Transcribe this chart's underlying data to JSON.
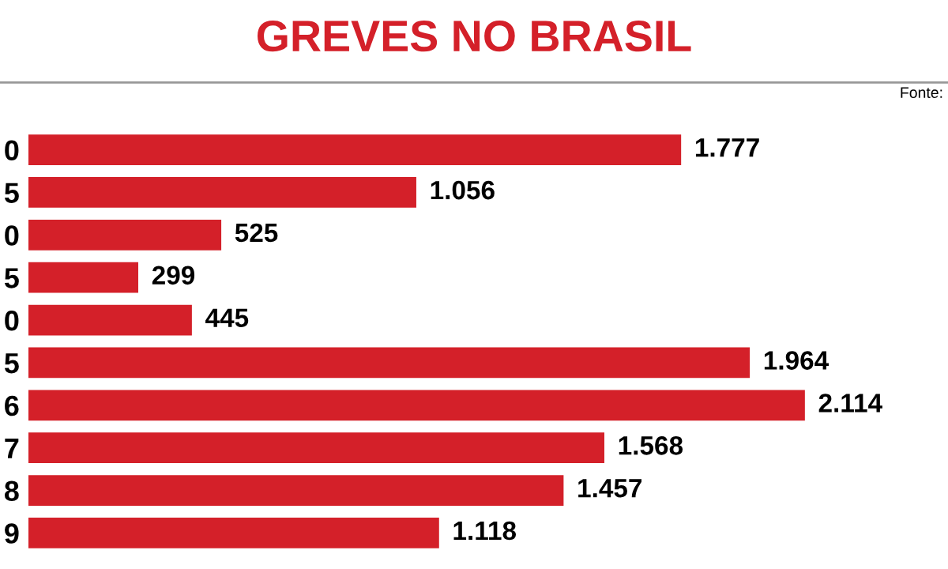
{
  "chart_data": {
    "type": "bar",
    "orientation": "horizontal",
    "title": "GREVES NO BRASIL",
    "annotations": [
      "Fonte:"
    ],
    "categories": [
      "0",
      "5",
      "0",
      "5",
      "0",
      "5",
      "6",
      "7",
      "8",
      "9"
    ],
    "values": [
      1777,
      1056,
      525,
      299,
      445,
      1964,
      2114,
      1568,
      1457,
      1118
    ],
    "value_labels": [
      "1.777",
      "1.056",
      "525",
      "299",
      "445",
      "1.964",
      "2.114",
      "1.568",
      "1.457",
      "1.118"
    ],
    "color": "#d42029",
    "grid": false,
    "legend": false
  }
}
